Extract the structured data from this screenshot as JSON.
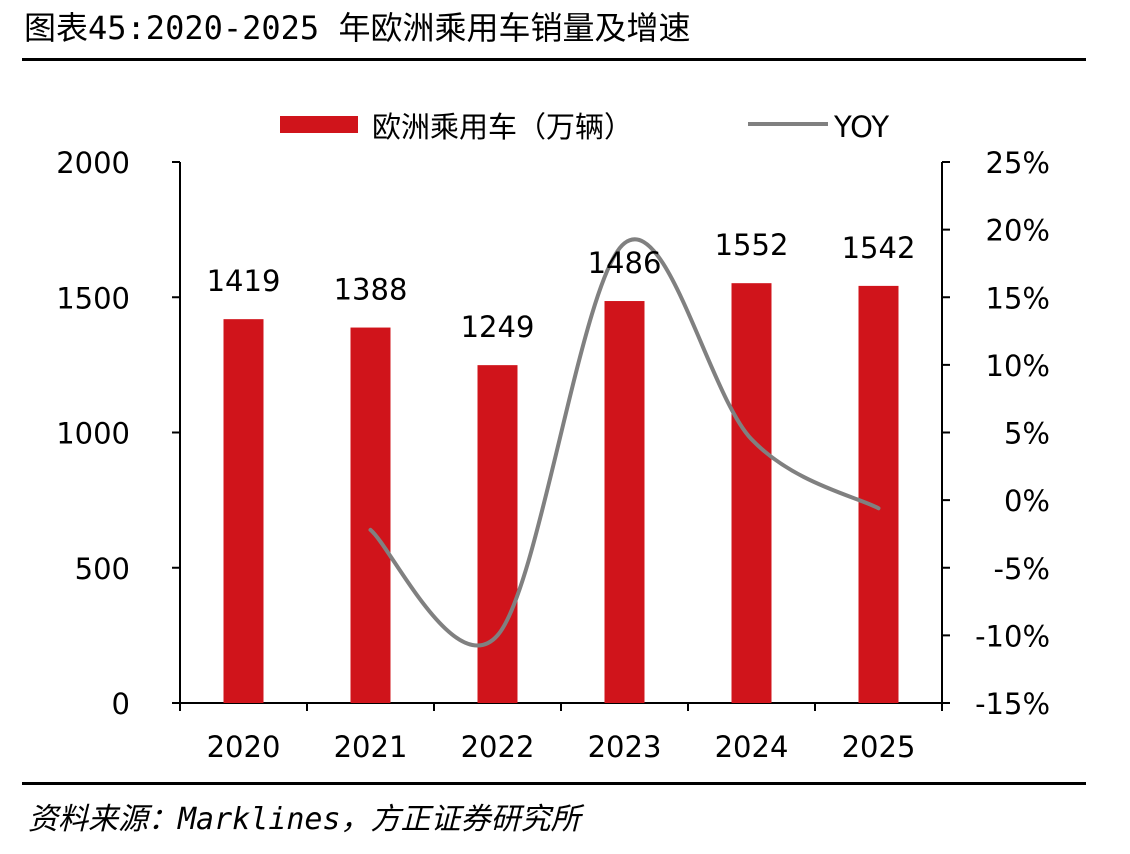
{
  "title": "图表45:2020-2025 年欧洲乘用车销量及增速",
  "source": "资料来源：Marklines，方正证券研究所",
  "chart_data": {
    "type": "bar",
    "categories": [
      "2020",
      "2021",
      "2022",
      "2023",
      "2024",
      "2025"
    ],
    "series": [
      {
        "name": "欧洲乘用车（万辆）",
        "type": "bar",
        "axis": "left",
        "color": "#d0141b",
        "values": [
          1419,
          1388,
          1249,
          1486,
          1552,
          1542
        ]
      },
      {
        "name": "YOY",
        "type": "line",
        "axis": "right",
        "color": "#808080",
        "smooth": true,
        "values": [
          null,
          -2.2,
          -10.0,
          19.0,
          4.5,
          -0.6
        ]
      }
    ],
    "data_labels": [
      "1419",
      "1388",
      "1249",
      "1486",
      "1552",
      "1542"
    ],
    "y_left": {
      "min": 0,
      "max": 2000,
      "ticks": [
        "0",
        "500",
        "1000",
        "1500",
        "2000"
      ]
    },
    "y_right": {
      "min": -15,
      "max": 25,
      "ticks": [
        "-15%",
        "-10%",
        "-5%",
        "0%",
        "5%",
        "10%",
        "15%",
        "20%",
        "25%"
      ]
    },
    "legend_position": "top",
    "grid": false
  }
}
